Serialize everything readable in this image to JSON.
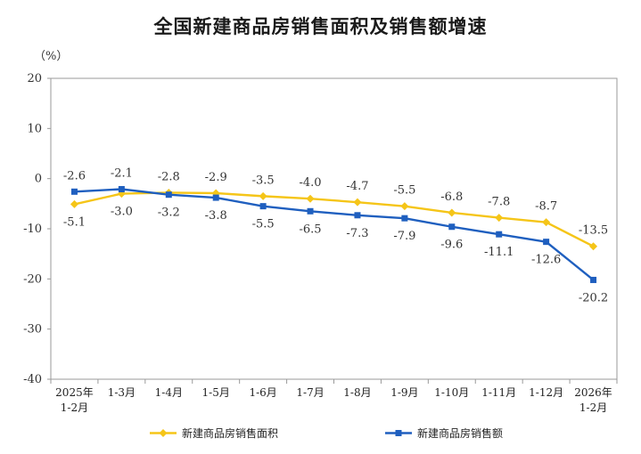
{
  "title": "全国新建商品房销售面积及销售额增速",
  "unit_label": "（%）",
  "chart_data": {
    "type": "line",
    "title": "全国新建商品房销售面积及销售额增速",
    "ylabel": "（%）",
    "ylim": [
      -40,
      20
    ],
    "yticks": [
      20,
      10,
      0,
      -10,
      -20,
      -30,
      -40
    ],
    "grid": false,
    "legend_position": "bottom",
    "categories": [
      [
        "2025年",
        "1-2月"
      ],
      [
        "1-3月"
      ],
      [
        "1-4月"
      ],
      [
        "1-5月"
      ],
      [
        "1-6月"
      ],
      [
        "1-7月"
      ],
      [
        "1-8月"
      ],
      [
        "1-9月"
      ],
      [
        "1-10月"
      ],
      [
        "1-11月"
      ],
      [
        "1-12月"
      ],
      [
        "2026年",
        "1-2月"
      ]
    ],
    "series": [
      {
        "name": "新建商品房销售面积",
        "color": "#F5C518",
        "values": [
          -5.1,
          -3.0,
          -2.8,
          -2.9,
          -3.5,
          -4.0,
          -4.7,
          -5.5,
          -6.8,
          -7.8,
          -8.7,
          -13.5
        ],
        "labels": [
          "-5.1",
          "-3.0",
          "-2.8",
          "-2.9",
          "-3.5",
          "-4.0",
          "-4.7",
          "-5.5",
          "-6.8",
          "-7.8",
          "-8.7",
          "-13.5"
        ]
      },
      {
        "name": "新建商品房销售额",
        "color": "#1F5FBF",
        "values": [
          -2.6,
          -2.1,
          -3.2,
          -3.8,
          -5.5,
          -6.5,
          -7.3,
          -7.9,
          -9.6,
          -11.1,
          -12.6,
          -20.2
        ],
        "labels": [
          "-2.6",
          "-2.1",
          "-3.2",
          "-3.8",
          "-5.5",
          "-6.5",
          "-7.3",
          "-7.9",
          "-9.6",
          "-11.1",
          "-12.6",
          "-20.2"
        ]
      }
    ]
  }
}
